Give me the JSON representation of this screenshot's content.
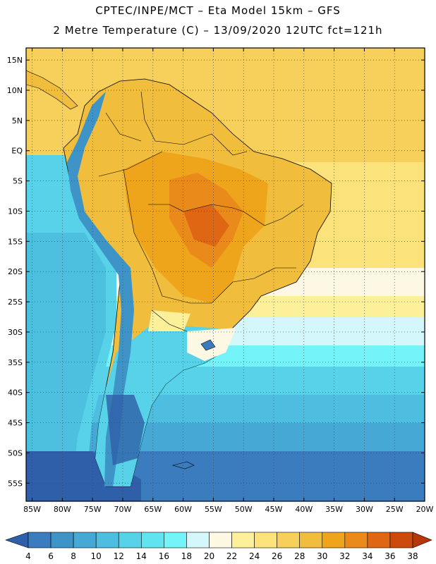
{
  "header": {
    "line1": "CPTEC/INPE/MCT –  Eta Model 15km – GFS",
    "line2": "2 Metre Temperature (C) – 13/09/2020 12UTC fct=121h"
  },
  "map": {
    "lat_labels": [
      "15N",
      "10N",
      "5N",
      "EQ",
      "5S",
      "10S",
      "15S",
      "20S",
      "25S",
      "30S",
      "35S",
      "40S",
      "45S",
      "50S",
      "55S"
    ],
    "lon_labels": [
      "85W",
      "80W",
      "75W",
      "70W",
      "65W",
      "60W",
      "55W",
      "50W",
      "45W",
      "40W",
      "35W",
      "30W",
      "25W",
      "20W"
    ],
    "lat_range": [
      17,
      -58
    ],
    "lon_range": [
      -86,
      -20
    ],
    "grid": "dotted"
  },
  "colorbar": {
    "labels": [
      "4",
      "6",
      "8",
      "10",
      "12",
      "14",
      "16",
      "18",
      "20",
      "22",
      "24",
      "26",
      "28",
      "30",
      "32",
      "34",
      "36",
      "38"
    ],
    "colors": [
      "#2f5fa8",
      "#3a7cbd",
      "#3e93c7",
      "#46a8d4",
      "#4dbedf",
      "#57d2e8",
      "#62e4f0",
      "#74f4f8",
      "#d4f7fb",
      "#fdf8e3",
      "#fcf19a",
      "#fbe27a",
      "#f6d05a",
      "#f1bd3c",
      "#eea51c",
      "#e98a1a",
      "#df6612",
      "#cc4a0c",
      "#b83608"
    ]
  },
  "colors": {
    "ocean_deep": "#2f5fa8",
    "ocean_cold": "#46a8d4",
    "ocean_mid": "#57d2e8",
    "ocean_light": "#74f4f8",
    "ocean_warm": "#fcf19a",
    "ocean_hot": "#f6d05a",
    "land_hot": "#eea51c",
    "land_very_hot": "#df6612",
    "andes": "#3e93c7"
  }
}
